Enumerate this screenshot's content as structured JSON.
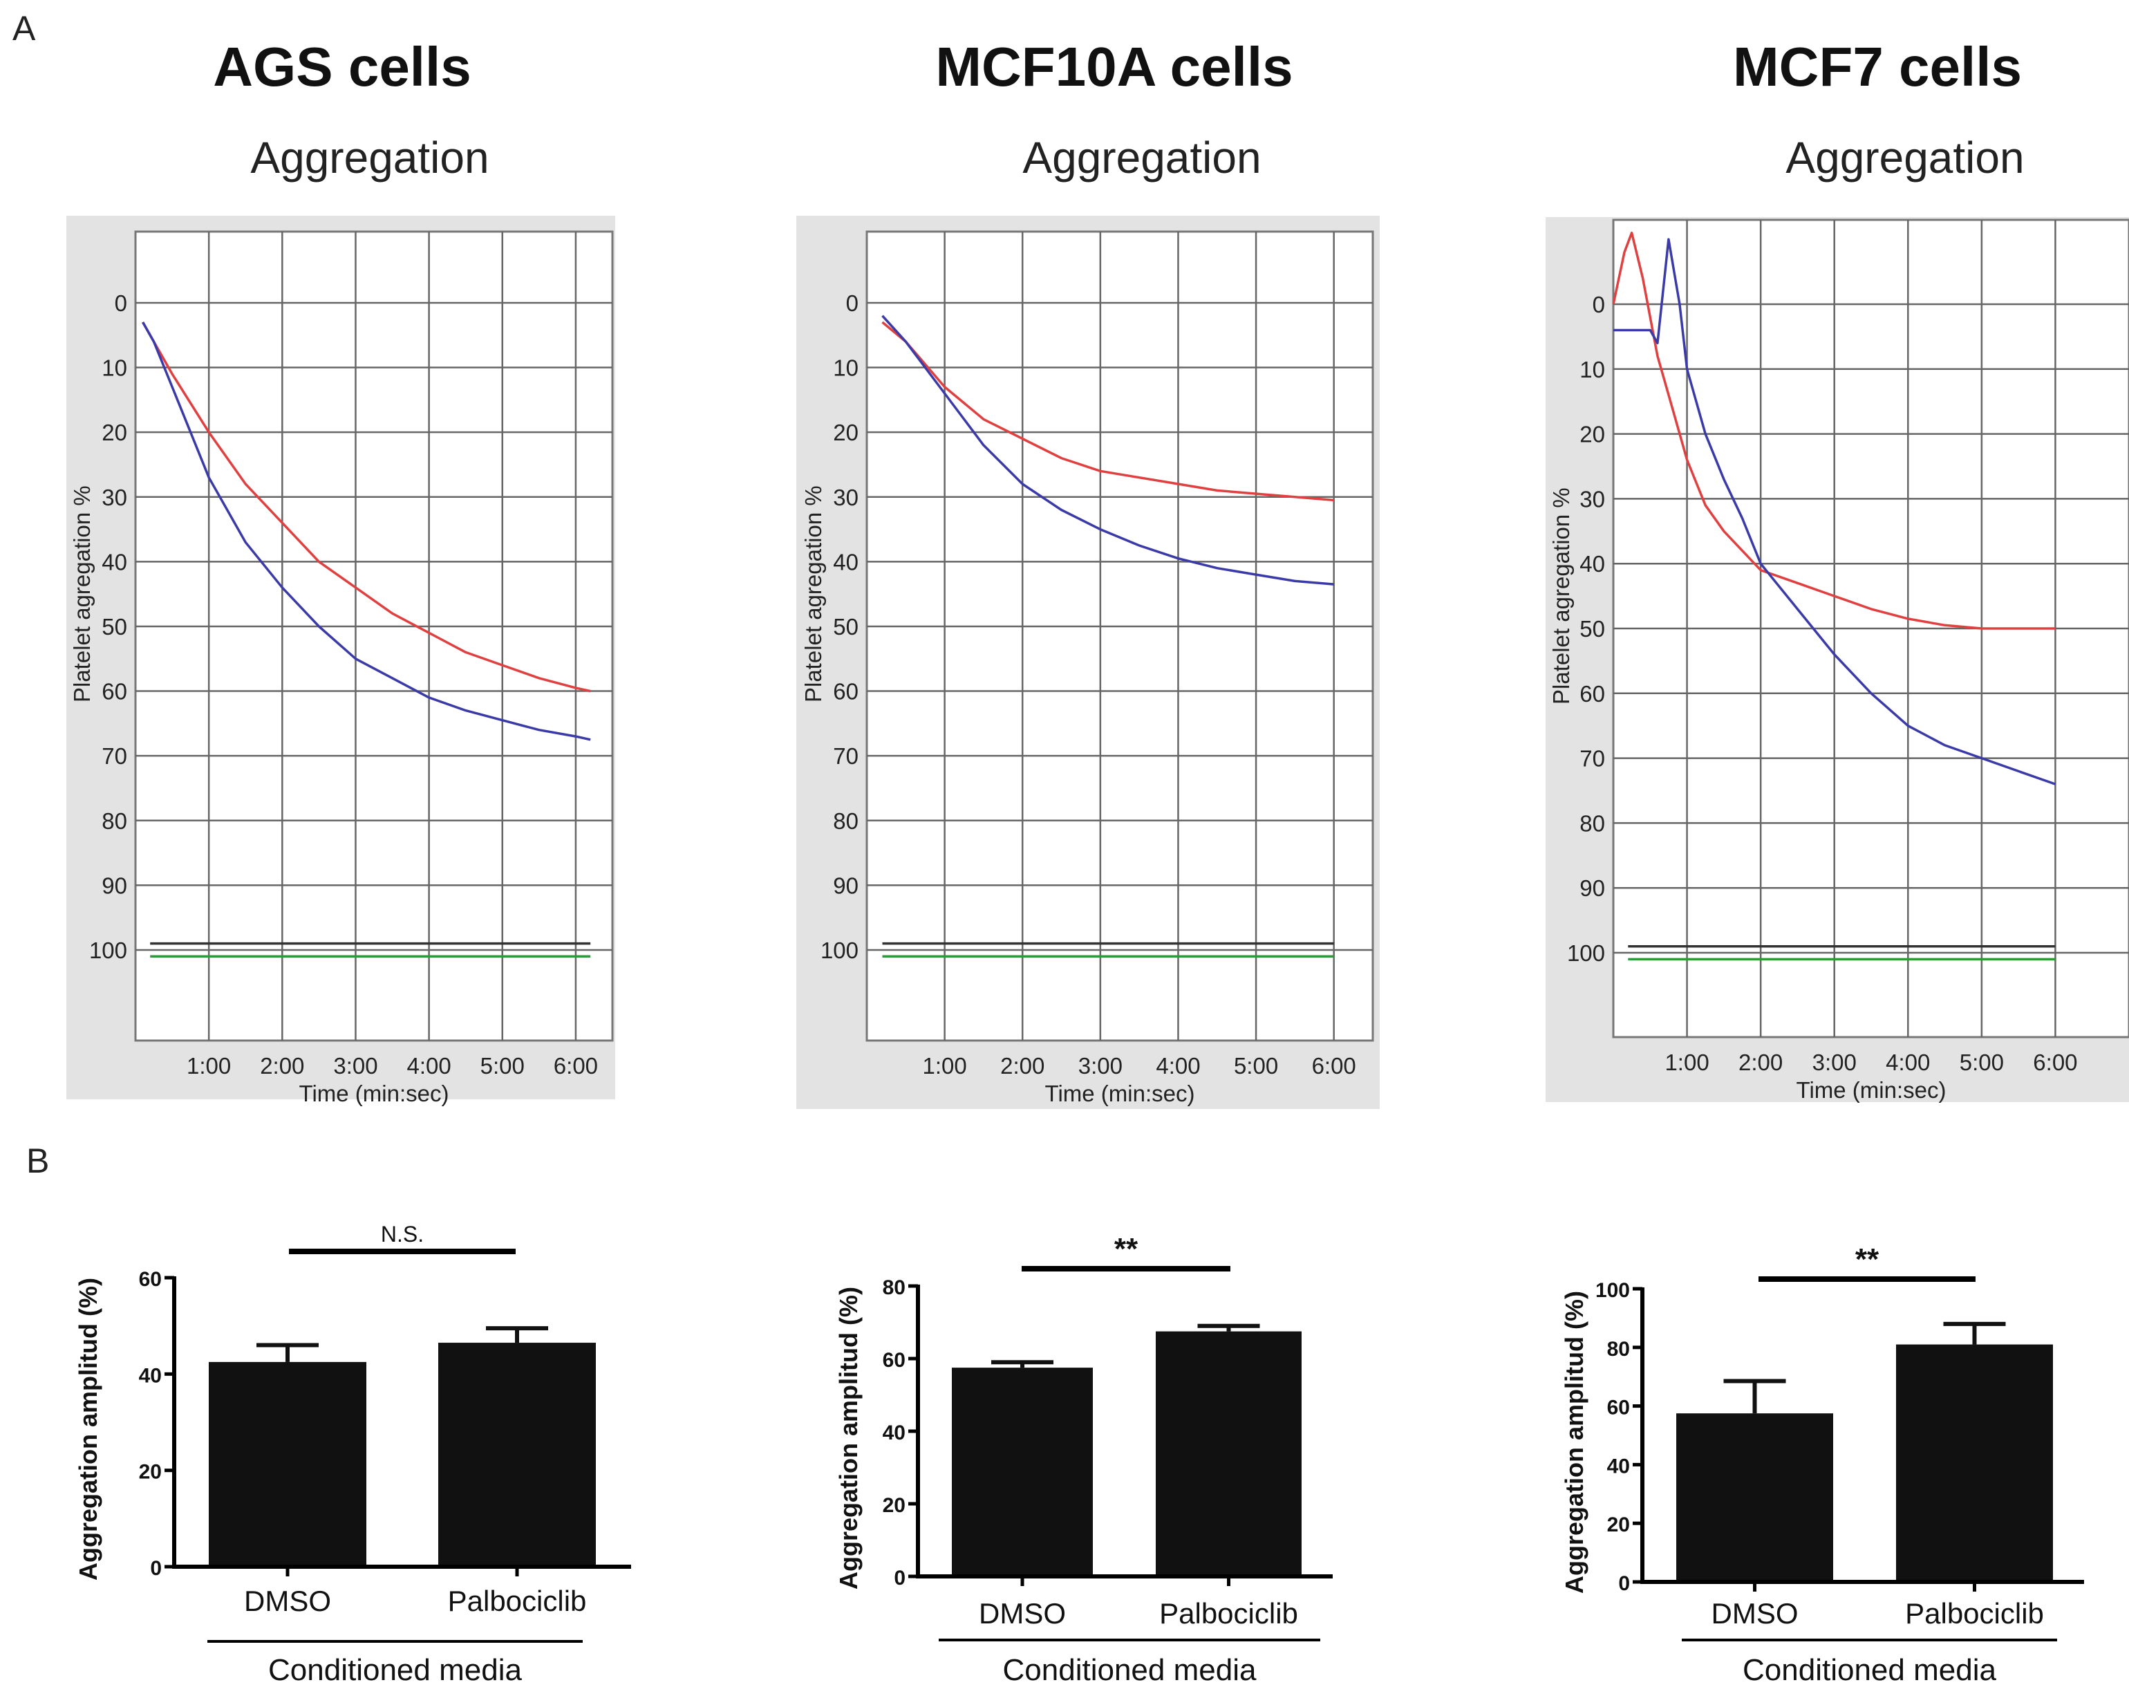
{
  "panel_labels": {
    "a": "A",
    "b": "B"
  },
  "colors": {
    "red_series": "#e04040",
    "blue_series": "#3a3aa8",
    "green_series": "#2f9a3a",
    "black_series": "#333333",
    "chart_bg": "#e3e3e3",
    "grid": "#666666",
    "bar": "#111111"
  },
  "chart_data": [
    {
      "type": "line",
      "panel": "A",
      "cell_title": "AGS cells",
      "title": "Aggregation",
      "xlabel": "Time (min:sec)",
      "ylabel": "Platelet agregation %",
      "x_ticks": [
        "1:00",
        "2:00",
        "3:00",
        "4:00",
        "5:00",
        "6:00"
      ],
      "y_ticks": [
        "0",
        "10",
        "20",
        "30",
        "40",
        "50",
        "60",
        "70",
        "80",
        "90",
        "100"
      ],
      "xlim": [
        0,
        6.5
      ],
      "ylim": [
        -11,
        114
      ],
      "series": [
        {
          "name": "red",
          "color": "#e04040",
          "x": [
            0.1,
            0.25,
            0.5,
            1.0,
            1.5,
            2.0,
            2.5,
            3.0,
            3.5,
            4.0,
            4.5,
            5.0,
            5.5,
            6.0,
            6.2
          ],
          "y": [
            3,
            6,
            11,
            20,
            28,
            34,
            40,
            44,
            48,
            51,
            54,
            56,
            58,
            59.5,
            60
          ]
        },
        {
          "name": "blue",
          "color": "#3a3aa8",
          "x": [
            0.1,
            0.25,
            0.5,
            1.0,
            1.5,
            2.0,
            2.5,
            3.0,
            3.5,
            4.0,
            4.5,
            5.0,
            5.5,
            6.0,
            6.2
          ],
          "y": [
            3,
            6,
            13,
            27,
            37,
            44,
            50,
            55,
            58,
            61,
            63,
            64.5,
            66,
            67,
            67.5
          ]
        },
        {
          "name": "black",
          "color": "#333333",
          "x": [
            0.2,
            6.2
          ],
          "y": [
            99,
            99
          ]
        },
        {
          "name": "green",
          "color": "#2f9a3a",
          "x": [
            0.2,
            6.2
          ],
          "y": [
            101,
            101
          ]
        }
      ]
    },
    {
      "type": "line",
      "panel": "A",
      "cell_title": "MCF10A cells",
      "title": "Aggregation",
      "xlabel": "Time (min:sec)",
      "ylabel": "Platelet agregation %",
      "x_ticks": [
        "1:00",
        "2:00",
        "3:00",
        "4:00",
        "5:00",
        "6:00"
      ],
      "y_ticks": [
        "0",
        "10",
        "20",
        "30",
        "40",
        "50",
        "60",
        "70",
        "80",
        "90",
        "100"
      ],
      "xlim": [
        0,
        6.5
      ],
      "ylim": [
        -11,
        114
      ],
      "series": [
        {
          "name": "red",
          "color": "#e04040",
          "x": [
            0.2,
            0.5,
            1.0,
            1.5,
            2.0,
            2.5,
            3.0,
            3.5,
            4.0,
            4.5,
            5.0,
            5.5,
            6.0
          ],
          "y": [
            3,
            6,
            13,
            18,
            21,
            24,
            26,
            27,
            28,
            29,
            29.5,
            30,
            30.5
          ]
        },
        {
          "name": "blue",
          "color": "#3a3aa8",
          "x": [
            0.2,
            0.5,
            1.0,
            1.5,
            2.0,
            2.5,
            3.0,
            3.5,
            4.0,
            4.5,
            5.0,
            5.5,
            6.0
          ],
          "y": [
            2,
            6,
            14,
            22,
            28,
            32,
            35,
            37.5,
            39.5,
            41,
            42,
            43,
            43.5
          ]
        },
        {
          "name": "black",
          "color": "#333333",
          "x": [
            0.2,
            6.0
          ],
          "y": [
            99,
            99
          ]
        },
        {
          "name": "green",
          "color": "#2f9a3a",
          "x": [
            0.2,
            6.0
          ],
          "y": [
            101,
            101
          ]
        }
      ]
    },
    {
      "type": "line",
      "panel": "A",
      "cell_title": "MCF7 cells",
      "title": "Aggregation",
      "xlabel": "Time (min:sec)",
      "ylabel": "Platelet agregation %",
      "x_ticks": [
        "1:00",
        "2:00",
        "3:00",
        "4:00",
        "5:00",
        "6:00"
      ],
      "y_ticks": [
        "0",
        "10",
        "20",
        "30",
        "40",
        "50",
        "60",
        "70",
        "80",
        "90",
        "100"
      ],
      "xlim": [
        0,
        7
      ],
      "ylim": [
        -13,
        113
      ],
      "series": [
        {
          "name": "red",
          "color": "#e04040",
          "x": [
            0,
            0.15,
            0.25,
            0.4,
            0.6,
            0.8,
            1.0,
            1.25,
            1.5,
            1.75,
            2.0,
            2.5,
            3.0,
            3.5,
            4.0,
            4.5,
            5.0,
            5.5,
            6.0
          ],
          "y": [
            0,
            -8,
            -11,
            -4,
            8,
            16,
            24,
            31,
            35,
            38,
            41,
            43,
            45,
            47,
            48.5,
            49.5,
            50,
            50,
            50
          ]
        },
        {
          "name": "blue",
          "color": "#3a3aa8",
          "x": [
            0,
            0.3,
            0.5,
            0.6,
            0.75,
            0.9,
            1.0,
            1.25,
            1.5,
            1.75,
            2.0,
            2.5,
            3.0,
            3.5,
            4.0,
            4.5,
            5.0,
            5.5,
            6.0
          ],
          "y": [
            4,
            4,
            4,
            6,
            -10,
            0,
            10,
            20,
            27,
            33,
            40,
            47,
            54,
            60,
            65,
            68,
            70,
            72,
            74
          ]
        },
        {
          "name": "black",
          "color": "#333333",
          "x": [
            0.2,
            6.0
          ],
          "y": [
            99,
            99
          ]
        },
        {
          "name": "green",
          "color": "#2f9a3a",
          "x": [
            0.2,
            6.0
          ],
          "y": [
            101,
            101
          ]
        }
      ]
    },
    {
      "type": "bar",
      "panel": "B",
      "ylabel": "Aggregation amplitud (%)",
      "categories": [
        "DMSO",
        "Palbociclib"
      ],
      "group_label": "Conditioned media",
      "values": [
        42.5,
        46.5
      ],
      "errors": [
        3.5,
        3.0
      ],
      "ylim": [
        0,
        60
      ],
      "y_ticks": [
        "0",
        "20",
        "40",
        "60"
      ],
      "significance": "N.S."
    },
    {
      "type": "bar",
      "panel": "B",
      "ylabel": "Aggregation amplitud (%)",
      "categories": [
        "DMSO",
        "Palbociclib"
      ],
      "group_label": "Conditioned media",
      "values": [
        57.5,
        67.5
      ],
      "errors": [
        1.5,
        1.5
      ],
      "ylim": [
        0,
        80
      ],
      "y_ticks": [
        "0",
        "20",
        "40",
        "60",
        "80"
      ],
      "significance": "**"
    },
    {
      "type": "bar",
      "panel": "B",
      "ylabel": "Aggregation amplitud (%)",
      "categories": [
        "DMSO",
        "Palbociclib"
      ],
      "group_label": "Conditioned media",
      "values": [
        57.5,
        81
      ],
      "errors": [
        11,
        7
      ],
      "ylim": [
        0,
        100
      ],
      "y_ticks": [
        "0",
        "20",
        "40",
        "60",
        "80",
        "100"
      ],
      "significance": "**"
    }
  ]
}
